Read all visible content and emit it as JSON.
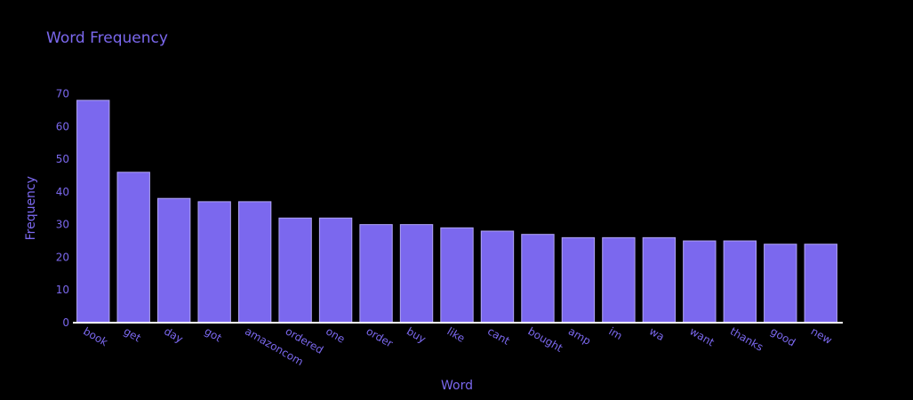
{
  "colors": {
    "background": "#000000",
    "bar": "#7b68ee",
    "bar_edge": "#b0a4f5",
    "text": "#7b68ee",
    "axis": "#ffffff"
  },
  "chart_data": {
    "type": "bar",
    "title": "Word Frequency",
    "xlabel": "Word",
    "ylabel": "Frequency",
    "categories": [
      "book",
      "get",
      "day",
      "got",
      "amazoncom",
      "ordered",
      "one",
      "order",
      "buy",
      "like",
      "cant",
      "bought",
      "amp",
      "im",
      "wa",
      "want",
      "thanks",
      "good",
      "new"
    ],
    "values": [
      68,
      46,
      38,
      37,
      37,
      32,
      32,
      30,
      30,
      29,
      28,
      27,
      26,
      26,
      26,
      25,
      25,
      24,
      24
    ],
    "ylim": [
      0,
      70
    ],
    "yticks": [
      0,
      10,
      20,
      30,
      40,
      50,
      60,
      70
    ],
    "grid": false,
    "legend": "none"
  }
}
